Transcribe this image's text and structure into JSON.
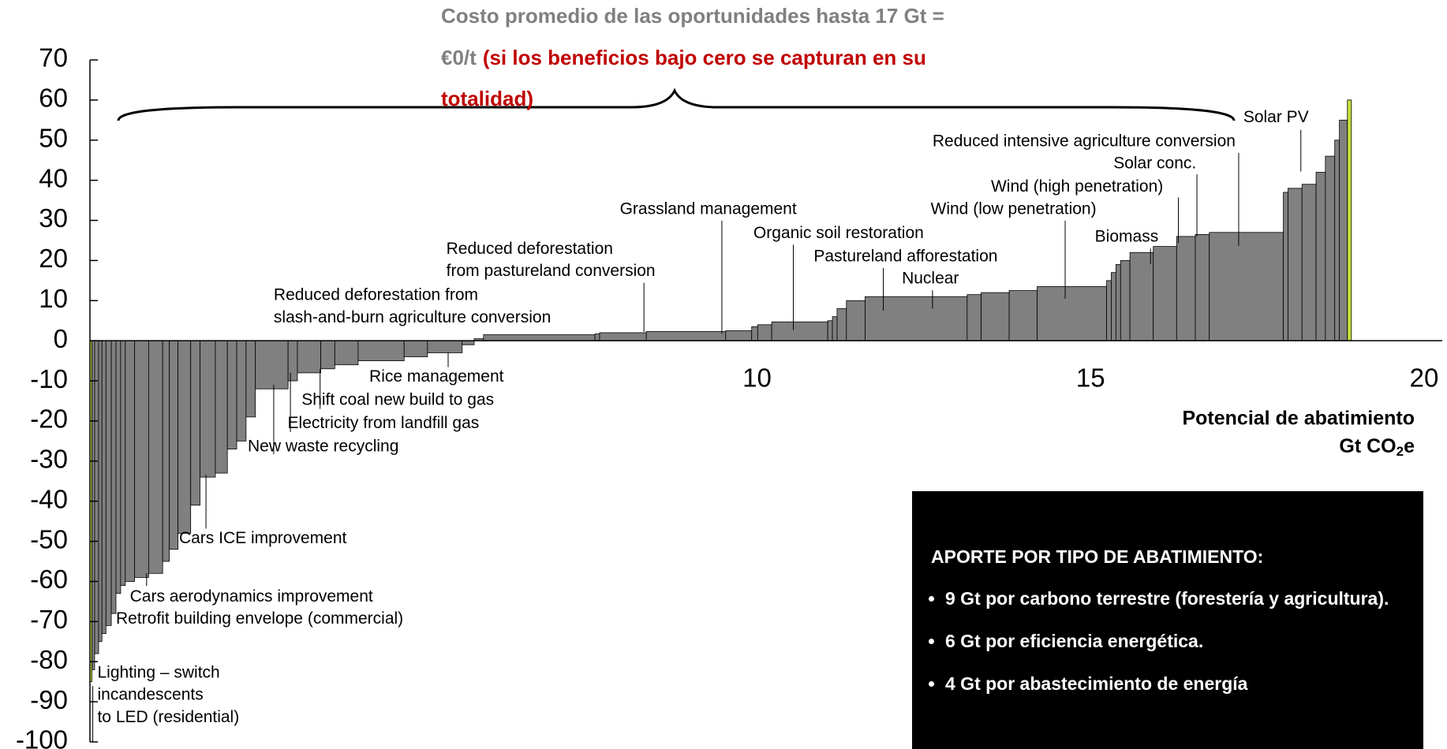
{
  "chart_data": {
    "type": "histogram",
    "title": [
      "Costo promedio de las oportunidades hasta 17 Gt =",
      "€0/t",
      "(si los beneficios bajo cero se capturan en su",
      "totalidad)"
    ],
    "xlabel": [
      "Potencial de abatimiento",
      "Gt CO",
      "2",
      "e"
    ],
    "bins": [
      0,
      0.03,
      0.07,
      0.13,
      0.18,
      0.24,
      0.32,
      0.39,
      0.46,
      0.53,
      0.67,
      0.88,
      1.09,
      1.19,
      1.32,
      1.51,
      1.65,
      1.88,
      2.06,
      2.2,
      2.34,
      2.48,
      2.97,
      3.11,
      3.46,
      3.67,
      4.02,
      4.71,
      5.06,
      5.58,
      5.76,
      5.9,
      7.57,
      7.64,
      8.34,
      9.53,
      9.92,
      10.01,
      10.22,
      11.06,
      11.13,
      11.2,
      11.34,
      11.62,
      13.15,
      13.36,
      13.78,
      14.2,
      15.24,
      15.31,
      15.38,
      15.45,
      15.59,
      15.94,
      16.29,
      16.57,
      16.78,
      17.89,
      17.96,
      18.17,
      18.38,
      18.52,
      18.66,
      18.73,
      18.85,
      18.91
    ],
    "values": [
      -85,
      -82,
      -78,
      -75,
      -73,
      -71,
      -68,
      -63,
      -61,
      -60,
      -59,
      -58,
      -55,
      -52,
      -48,
      -41,
      -34,
      -33,
      -27,
      -25,
      -19,
      -12,
      -10,
      -8,
      -7,
      -6,
      -5,
      -4,
      -3,
      -1,
      0.5,
      1.5,
      1.7,
      2,
      2.3,
      2.5,
      3.5,
      4,
      4.7,
      5,
      6,
      8,
      10,
      11,
      11.5,
      12,
      12.5,
      13.5,
      15,
      17,
      19,
      20,
      22,
      23.5,
      26,
      26.5,
      27,
      37,
      38,
      39,
      42,
      46,
      50,
      55,
      60
    ],
    "colors": [
      "#c8e03c",
      "#808080",
      "#808080",
      "#808080",
      "#808080",
      "#808080",
      "#808080",
      "#808080",
      "#808080",
      "#808080",
      "#808080",
      "#808080",
      "#808080",
      "#808080",
      "#808080",
      "#808080",
      "#808080",
      "#808080",
      "#808080",
      "#808080",
      "#808080",
      "#808080",
      "#808080",
      "#808080",
      "#808080",
      "#808080",
      "#808080",
      "#808080",
      "#808080",
      "#808080",
      "#808080",
      "#808080",
      "#808080",
      "#808080",
      "#808080",
      "#808080",
      "#808080",
      "#808080",
      "#808080",
      "#808080",
      "#808080",
      "#808080",
      "#808080",
      "#808080",
      "#808080",
      "#808080",
      "#808080",
      "#808080",
      "#808080",
      "#808080",
      "#808080",
      "#808080",
      "#808080",
      "#808080",
      "#808080",
      "#808080",
      "#808080",
      "#808080",
      "#808080",
      "#808080",
      "#808080",
      "#808080",
      "#808080",
      "#808080",
      "#c8e03c"
    ],
    "xlim": [
      0,
      20
    ],
    "xticks": [
      10,
      15,
      20
    ],
    "ylim": [
      -100,
      70
    ],
    "yticks": [
      70,
      60,
      50,
      40,
      30,
      20,
      10,
      0,
      -10,
      -20,
      -30,
      -40,
      -50,
      -60,
      -70,
      -80,
      -90,
      -100
    ],
    "grid": false,
    "annotations": [
      [
        "Solar PV"
      ],
      [
        "Reduced intensive agriculture conversion"
      ],
      [
        "Solar conc."
      ],
      [
        "Wind (high penetration)"
      ],
      [
        "Wind (low penetration)"
      ],
      [
        "Grassland management"
      ],
      [
        "Organic soil restoration"
      ],
      [
        "Biomass"
      ],
      [
        "Pastureland afforestation"
      ],
      [
        "Reduced deforestation",
        "from pastureland conversion"
      ],
      [
        "Nuclear"
      ],
      [
        "Reduced deforestation from",
        "slash-and-burn agriculture conversion"
      ],
      [
        "Rice management"
      ],
      [
        "Shift coal new build to gas"
      ],
      [
        "Electricity from landfill gas"
      ],
      [
        "New waste recycling"
      ],
      [
        "Cars ICE improvement"
      ],
      [
        "Cars aerodynamics improvement"
      ],
      [
        "Retrofit building envelope (commercial)"
      ],
      [
        "Lighting – switch",
        "incandescents",
        "to LED (residential)"
      ]
    ],
    "note_heading": "APORTE POR TIPO DE ABATIMIENTO:",
    "note_bullets": [
      "9 Gt  por carbono terrestre (forestería y agricultura).",
      "6 Gt por eficiencia energética.",
      "4 Gt por abastecimiento de energía"
    ]
  }
}
